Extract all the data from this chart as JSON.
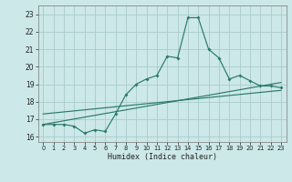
{
  "xlabel": "Humidex (Indice chaleur)",
  "bg_color": "#cce8e8",
  "line_color": "#2a7a6a",
  "grid_color": "#aacccc",
  "xlim": [
    -0.5,
    23.5
  ],
  "ylim": [
    15.7,
    23.5
  ],
  "yticks": [
    16,
    17,
    18,
    19,
    20,
    21,
    22,
    23
  ],
  "xticks": [
    0,
    1,
    2,
    3,
    4,
    5,
    6,
    7,
    8,
    9,
    10,
    11,
    12,
    13,
    14,
    15,
    16,
    17,
    18,
    19,
    20,
    21,
    22,
    23
  ],
  "main_x": [
    0,
    1,
    2,
    3,
    4,
    5,
    6,
    7,
    8,
    9,
    10,
    11,
    12,
    13,
    14,
    15,
    16,
    17,
    18,
    19,
    20,
    21,
    22,
    23
  ],
  "main_y": [
    16.7,
    16.7,
    16.7,
    16.6,
    16.2,
    16.4,
    16.3,
    17.3,
    18.4,
    19.0,
    19.3,
    19.5,
    20.6,
    20.5,
    22.8,
    22.8,
    21.0,
    20.5,
    19.3,
    19.5,
    19.2,
    18.9,
    18.9,
    18.8
  ],
  "line2_x": [
    0,
    23
  ],
  "line2_y": [
    16.7,
    19.1
  ],
  "line3_x": [
    0,
    23
  ],
  "line3_y": [
    17.3,
    18.65
  ]
}
